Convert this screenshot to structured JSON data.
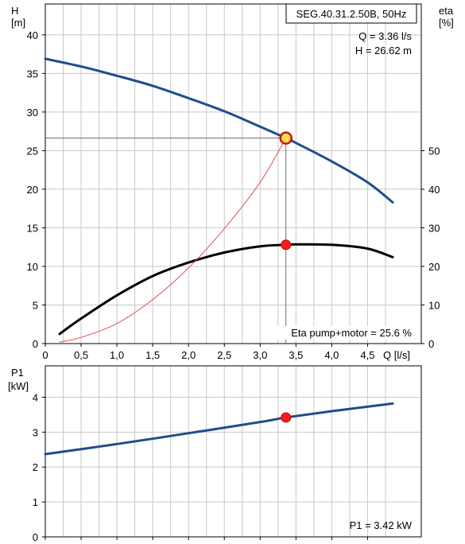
{
  "chart_data": [
    {
      "type": "line",
      "title": "SEG.40.31.2.50B, 50Hz",
      "xlabel": "Q [l/s]",
      "ylabel_left": [
        "H",
        "[m]"
      ],
      "ylabel_right": [
        "eta",
        "[%]"
      ],
      "xlim": [
        0,
        5.25
      ],
      "ylim_left": [
        0,
        44
      ],
      "ylim_right": [
        0,
        88
      ],
      "x_ticks": [
        "0",
        "0,5",
        "1,0",
        "1,5",
        "2,0",
        "2,5",
        "3,0",
        "3,5",
        "4,0",
        "4,5"
      ],
      "y_ticks_left": [
        "0",
        "5",
        "10",
        "15",
        "20",
        "25",
        "30",
        "35",
        "40"
      ],
      "y_ticks_right": [
        "0",
        "10",
        "20",
        "30",
        "40",
        "50"
      ],
      "grid": true,
      "annotations": {
        "q": "Q = 3.36 l/s",
        "h": "H = 26.62 m",
        "eta": "Eta pump+motor = 25.6 %"
      },
      "operating_point": {
        "x": 3.36,
        "h": 26.62,
        "eta": 25.6
      },
      "series": [
        {
          "axis": "left",
          "color": "#1f4e89",
          "x": [
            0,
            0.5,
            1.0,
            1.5,
            2.0,
            2.5,
            3.0,
            3.36,
            3.5,
            4.0,
            4.5,
            4.85
          ],
          "values": [
            36.9,
            35.9,
            34.7,
            33.4,
            31.8,
            30.1,
            28.1,
            26.62,
            26.0,
            23.6,
            20.9,
            18.3
          ]
        },
        {
          "axis": "right",
          "color": "#000000",
          "x": [
            0.2,
            0.5,
            1.0,
            1.5,
            2.0,
            2.5,
            3.0,
            3.36,
            3.5,
            4.0,
            4.5,
            4.85
          ],
          "values": [
            2.5,
            6.5,
            12.5,
            17.5,
            21.0,
            23.6,
            25.2,
            25.6,
            25.7,
            25.6,
            24.6,
            22.4
          ]
        },
        {
          "axis": "left",
          "color": "#e05050",
          "x": [
            0.2,
            0.5,
            1.0,
            1.5,
            2.0,
            2.5,
            3.0,
            3.36
          ],
          "values": [
            0.2,
            0.8,
            2.6,
            5.7,
            9.8,
            14.9,
            20.9,
            26.62
          ]
        }
      ]
    },
    {
      "type": "line",
      "ylabel": [
        "P1",
        "[kW]"
      ],
      "xlim": [
        0,
        5.25
      ],
      "ylim": [
        0,
        4.9
      ],
      "y_ticks": [
        "0",
        "1",
        "2",
        "3",
        "4"
      ],
      "grid": true,
      "annotation": "P1 = 3.42 kW",
      "operating_point": {
        "x": 3.36,
        "y": 3.42
      },
      "series": [
        {
          "color": "#1f4e89",
          "x": [
            0,
            1.0,
            2.0,
            3.0,
            3.36,
            4.0,
            4.85
          ],
          "values": [
            2.37,
            2.66,
            2.97,
            3.29,
            3.42,
            3.6,
            3.82
          ]
        }
      ]
    }
  ]
}
